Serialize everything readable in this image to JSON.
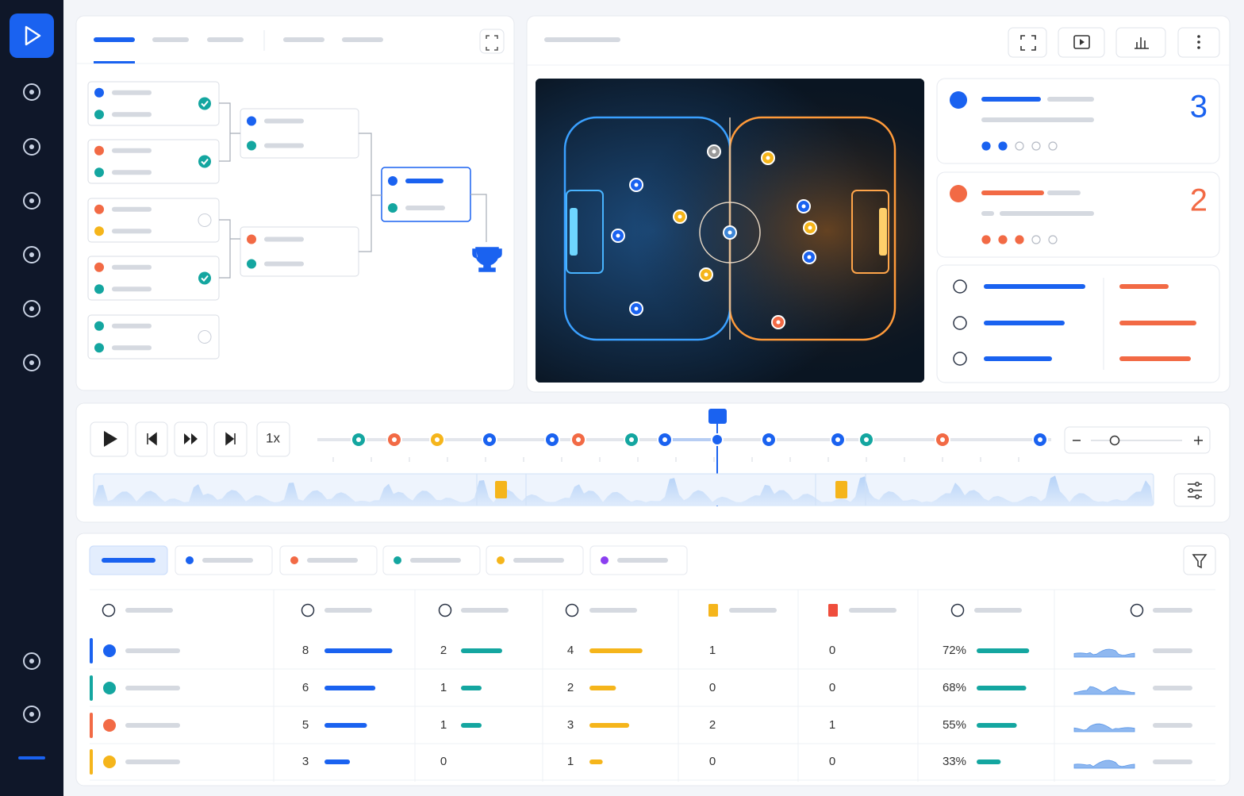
{
  "score_cards": [
    {
      "score": "3"
    },
    {
      "score": "2"
    }
  ],
  "timeline": {
    "speed": "1x"
  },
  "table": {
    "rows": [
      [
        8,
        2,
        4,
        1,
        0,
        "72%"
      ],
      [
        6,
        1,
        2,
        0,
        0,
        "68%"
      ],
      [
        5,
        1,
        3,
        2,
        1,
        "55%"
      ],
      [
        3,
        0,
        1,
        0,
        0,
        "33%"
      ]
    ]
  }
}
